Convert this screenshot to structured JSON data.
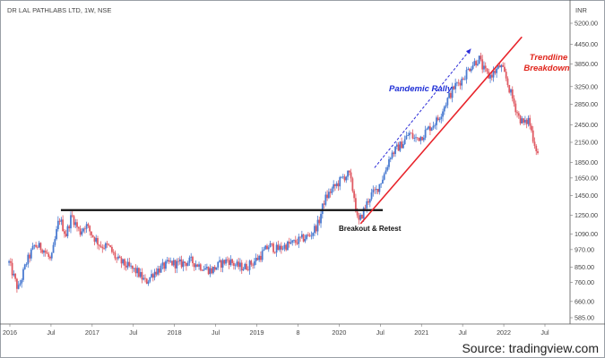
{
  "title": "DR LAL PATHLABS LTD, 1W, NSE",
  "currency": "INR",
  "source": "Source: tradingview.com",
  "colors": {
    "up": "#4a7bd1",
    "down": "#e05a63",
    "support": "#111111",
    "trendline": "#e8242b",
    "rally": "#2b2bd8",
    "breakdown_text": "#e0241b",
    "rally_text": "#1f2fd6"
  },
  "annotations": {
    "breakout": "Breakout & Retest",
    "rally": "Pandemic Rally",
    "breakdown_line1": "Trendline",
    "breakdown_line2": "Breakdown"
  },
  "chart_data": {
    "type": "candlestick",
    "scale": "log",
    "interval": "1W",
    "ylim": [
      520,
      6000
    ],
    "x_ticks": [
      {
        "label": "2016",
        "t": 2016.0
      },
      {
        "label": "Jul",
        "t": 2016.5
      },
      {
        "label": "2017",
        "t": 2017.0
      },
      {
        "label": "Jul",
        "t": 2017.5
      },
      {
        "label": "2018",
        "t": 2018.0
      },
      {
        "label": "Jul",
        "t": 2018.5
      },
      {
        "label": "2019",
        "t": 2019.0
      },
      {
        "label": "8",
        "t": 2019.5
      },
      {
        "label": "2020",
        "t": 2020.0
      },
      {
        "label": "Jul",
        "t": 2020.5
      },
      {
        "label": "2021",
        "t": 2021.0
      },
      {
        "label": "Jul",
        "t": 2021.5
      },
      {
        "label": "2022",
        "t": 2022.0
      },
      {
        "label": "Jul",
        "t": 2022.5
      }
    ],
    "y_ticks": [
      "5200.00",
      "4450.00",
      "3850.00",
      "3250.00",
      "2850.00",
      "2450.00",
      "2150.00",
      "1850.00",
      "1650.00",
      "1450.00",
      "1250.00",
      "1090.00",
      "970.00",
      "850.00",
      "760.00",
      "660.00",
      "585.00"
    ],
    "price_path": [
      [
        2015.99,
        880
      ],
      [
        2016.1,
        720
      ],
      [
        2016.2,
        880
      ],
      [
        2016.3,
        1000
      ],
      [
        2016.4,
        980
      ],
      [
        2016.5,
        890
      ],
      [
        2016.6,
        1230
      ],
      [
        2016.68,
        1080
      ],
      [
        2016.75,
        1250
      ],
      [
        2016.85,
        1100
      ],
      [
        2016.92,
        1170
      ],
      [
        2017.0,
        1080
      ],
      [
        2017.1,
        1000
      ],
      [
        2017.2,
        990
      ],
      [
        2017.3,
        900
      ],
      [
        2017.45,
        850
      ],
      [
        2017.55,
        820
      ],
      [
        2017.65,
        760
      ],
      [
        2017.75,
        820
      ],
      [
        2017.85,
        850
      ],
      [
        2017.95,
        880
      ],
      [
        2018.05,
        870
      ],
      [
        2018.2,
        890
      ],
      [
        2018.35,
        850
      ],
      [
        2018.45,
        830
      ],
      [
        2018.55,
        870
      ],
      [
        2018.65,
        900
      ],
      [
        2018.75,
        860
      ],
      [
        2018.85,
        850
      ],
      [
        2018.95,
        880
      ],
      [
        2019.05,
        930
      ],
      [
        2019.15,
        1000
      ],
      [
        2019.25,
        970
      ],
      [
        2019.35,
        1000
      ],
      [
        2019.45,
        1020
      ],
      [
        2019.55,
        1050
      ],
      [
        2019.65,
        1080
      ],
      [
        2019.75,
        1180
      ],
      [
        2019.82,
        1400
      ],
      [
        2019.9,
        1500
      ],
      [
        2019.98,
        1580
      ],
      [
        2020.05,
        1660
      ],
      [
        2020.12,
        1700
      ],
      [
        2020.18,
        1450
      ],
      [
        2020.23,
        1170
      ],
      [
        2020.3,
        1300
      ],
      [
        2020.38,
        1450
      ],
      [
        2020.45,
        1500
      ],
      [
        2020.55,
        1700
      ],
      [
        2020.62,
        1950
      ],
      [
        2020.7,
        2050
      ],
      [
        2020.78,
        2150
      ],
      [
        2020.85,
        2300
      ],
      [
        2020.92,
        2200
      ],
      [
        2021.0,
        2250
      ],
      [
        2021.1,
        2400
      ],
      [
        2021.2,
        2550
      ],
      [
        2021.3,
        2900
      ],
      [
        2021.4,
        3250
      ],
      [
        2021.5,
        3450
      ],
      [
        2021.6,
        3800
      ],
      [
        2021.7,
        4000
      ],
      [
        2021.75,
        3700
      ],
      [
        2021.82,
        3500
      ],
      [
        2021.9,
        3650
      ],
      [
        2021.96,
        3800
      ],
      [
        2022.02,
        3500
      ],
      [
        2022.1,
        3000
      ],
      [
        2022.18,
        2600
      ],
      [
        2022.25,
        2450
      ],
      [
        2022.3,
        2550
      ],
      [
        2022.36,
        2200
      ],
      [
        2022.42,
        1950
      ]
    ],
    "levels": [
      {
        "name": "support",
        "value": 1300,
        "t_start": 2016.62,
        "t_end": 2020.53
      }
    ],
    "trendline": {
      "t_start": 2020.26,
      "v_start": 1175,
      "t_end": 2022.22,
      "v_end": 4700
    },
    "rally_arrow": {
      "t_start": 2020.43,
      "v_start": 1780,
      "t_end": 2021.6,
      "v_end": 4300
    }
  }
}
